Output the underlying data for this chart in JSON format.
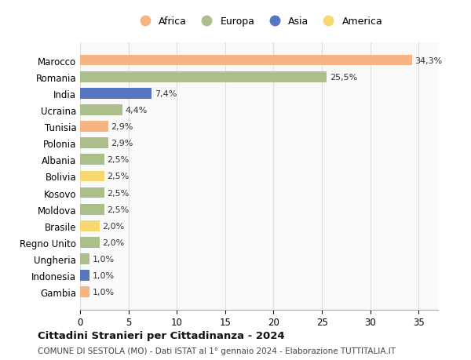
{
  "countries": [
    "Marocco",
    "Romania",
    "India",
    "Ucraina",
    "Tunisia",
    "Polonia",
    "Albania",
    "Bolivia",
    "Kosovo",
    "Moldova",
    "Brasile",
    "Regno Unito",
    "Ungheria",
    "Indonesia",
    "Gambia"
  ],
  "values": [
    34.3,
    25.5,
    7.4,
    4.4,
    2.9,
    2.9,
    2.5,
    2.5,
    2.5,
    2.5,
    2.0,
    2.0,
    1.0,
    1.0,
    1.0
  ],
  "labels": [
    "34,3%",
    "25,5%",
    "7,4%",
    "4,4%",
    "2,9%",
    "2,9%",
    "2,5%",
    "2,5%",
    "2,5%",
    "2,5%",
    "2,0%",
    "2,0%",
    "1,0%",
    "1,0%",
    "1,0%"
  ],
  "continents": [
    "Africa",
    "Europa",
    "Asia",
    "Europa",
    "Africa",
    "Europa",
    "Europa",
    "America",
    "Europa",
    "Europa",
    "America",
    "Europa",
    "Europa",
    "Asia",
    "Africa"
  ],
  "colors": {
    "Africa": "#F5B482",
    "Europa": "#ABBE8B",
    "Asia": "#5577C0",
    "America": "#F5D870"
  },
  "title": "Cittadini Stranieri per Cittadinanza - 2024",
  "subtitle": "COMUNE DI SESTOLA (MO) - Dati ISTAT al 1° gennaio 2024 - Elaborazione TUTTITALIA.IT",
  "xlim": [
    0,
    37
  ],
  "xticks": [
    0,
    5,
    10,
    15,
    20,
    25,
    30,
    35
  ],
  "background_color": "#ffffff",
  "plot_bg_color": "#f9f9f9",
  "grid_color": "#dddddd"
}
